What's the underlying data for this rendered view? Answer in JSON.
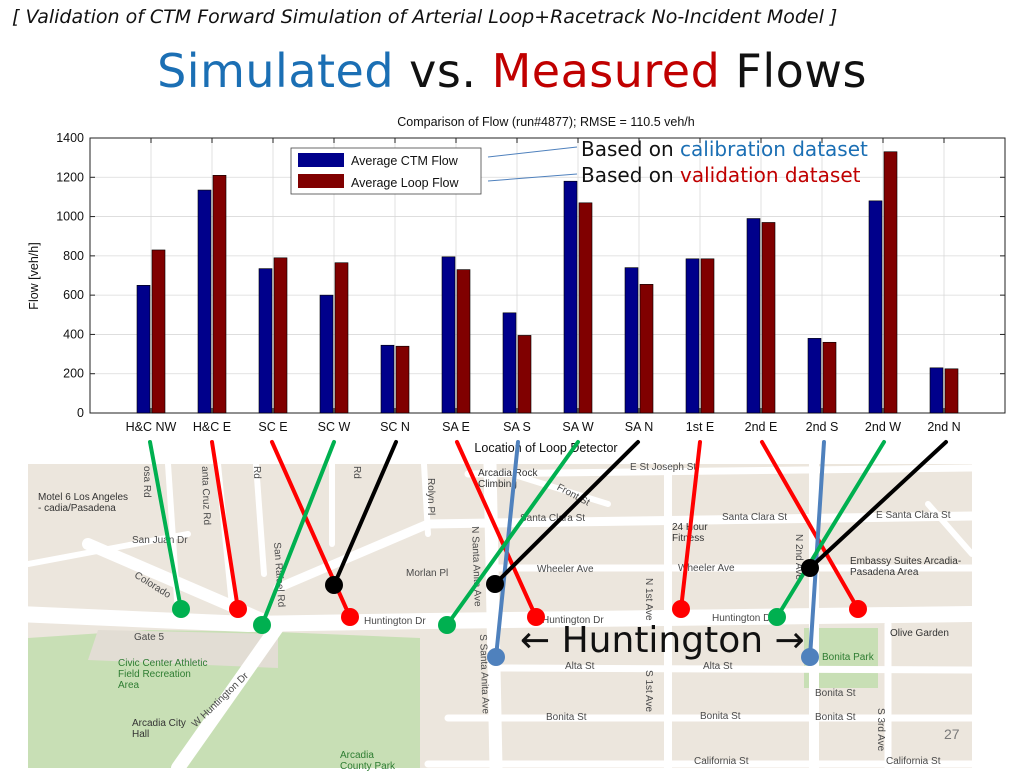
{
  "slide": {
    "kicker": "[ Validation of CTM Forward Simulation of Arterial Loop+Racetrack No-Incident Model ]",
    "headline": {
      "part1": "Simulated",
      "part2": " vs. ",
      "part3": "Measured",
      "part4": " Flows"
    },
    "note_calibration": {
      "prefix": "Based on ",
      "highlight": "calibration dataset"
    },
    "note_validation": {
      "prefix": "Based on ",
      "highlight": "validation dataset"
    },
    "callout": {
      "left_arrow": "←",
      "text": " Huntington ",
      "right_arrow": "→"
    },
    "page_number": "27",
    "colors": {
      "simulated": "#1b6fb4",
      "measured": "#c00000",
      "ctm_bar": "#00008b",
      "loop_bar": "#800000"
    }
  },
  "chart_data": {
    "type": "bar",
    "title": "Comparison of Flow (run#4877); RMSE = 110.5 veh/h",
    "xlabel": "Location of Loop Detector",
    "ylabel": "Flow [veh/h]",
    "ylim": [
      0,
      1400
    ],
    "yticks": [
      0,
      200,
      400,
      600,
      800,
      1000,
      1200,
      1400
    ],
    "grid": true,
    "legend_position": "top-left",
    "categories": [
      "H&C NW",
      "H&C E",
      "SC E",
      "SC W",
      "SC N",
      "SA E",
      "SA S",
      "SA W",
      "SA N",
      "1st E",
      "2nd E",
      "2nd S",
      "2nd W",
      "2nd N"
    ],
    "series": [
      {
        "name": "Average CTM Flow",
        "color": "#00008b",
        "values": [
          650,
          1135,
          735,
          600,
          345,
          795,
          510,
          1180,
          740,
          785,
          990,
          380,
          1080,
          230
        ]
      },
      {
        "name": "Average Loop Flow",
        "color": "#800000",
        "values": [
          830,
          1210,
          790,
          765,
          340,
          730,
          395,
          1070,
          655,
          785,
          970,
          360,
          1330,
          225
        ]
      }
    ]
  },
  "map": {
    "streets": [
      "E St Joseph St",
      "Santa Clara St",
      "Santa Clara St",
      "E Santa Clara St",
      "San Juan Dr",
      "Morlan Pl",
      "Wheeler Ave",
      "Wheeler Ave",
      "Huntington Dr",
      "Huntington Dr",
      "Huntington Dr",
      "Alta St",
      "Alta St",
      "Bonita St",
      "Bonita St",
      "Bonita St",
      "Bonita St",
      "Colorado",
      "W Huntington Dr",
      "N Santa Anita Ave",
      "S Santa Anita Ave",
      "N 1st Ave",
      "S 1st Ave",
      "N 2nd Ave",
      "S 3rd Ave",
      "Rolyn Pl",
      "Gate 5",
      "Front St",
      "Rd",
      "Rd",
      "osa Rd",
      "anta Cruz Rd",
      "San Rafael Rd",
      "California St",
      "California St"
    ],
    "places": [
      "Motel 6 Los Angeles - cadia/Pasadena",
      "Arcadia Rock Climbing",
      "24 Hour Fitness",
      "Embassy Suites Arcadia-Pasadena Area",
      "Olive Garden",
      "Civic Center Athletic Field Recreation Area",
      "Arcadia City Hall",
      "Bonita Park",
      "Arcadia County Park"
    ]
  }
}
